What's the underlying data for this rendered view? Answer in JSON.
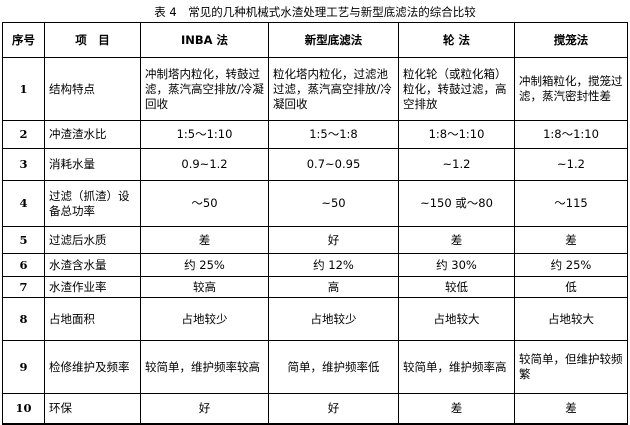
{
  "caption": "表 4　常见的几种机械式水渣处理工艺与新型底滤法的综合比较",
  "headers": [
    "序号",
    "项　目",
    "INBA 法",
    "新型底滤法",
    "轮 法",
    "搅笼法"
  ],
  "rows": [
    {
      "no": "1",
      "item": "结构特点",
      "values": [
        "冲制塔内粒化，转鼓过滤，蒸汽高空排放/冷凝回收",
        "粒化塔内粒化，过滤池过滤，蒸汽高空排放/冷凝回收",
        "粒化轮（或粒化箱）粒化，转鼓过滤，高空排放",
        "冲制箱粒化，搅笼过滤，蒸汽密封性差"
      ]
    },
    {
      "no": "2",
      "item": "冲渣渣水比",
      "values": [
        "1:5～1:10",
        "1:5～1:8",
        "1:8～1:10",
        "1:8～1:10"
      ]
    },
    {
      "no": "3",
      "item": "消耗水量",
      "values": [
        "0.9~1.2",
        "0.7~0.95",
        "~1.2",
        "~1.2"
      ]
    },
    {
      "no": "4",
      "item": "过滤（抓渣）设备总功率",
      "values": [
        "～50",
        "~50",
        "~150 或～80",
        "～115"
      ]
    },
    {
      "no": "5",
      "item": "过滤后水质",
      "values": [
        "差",
        "好",
        "差",
        "差"
      ]
    },
    {
      "no": "6",
      "item": "水渣含水量",
      "values": [
        "约 25%",
        "约 12%",
        "约 30%",
        "约 25%"
      ]
    },
    {
      "no": "7",
      "item": "水渣作业率",
      "values": [
        "较高",
        "高",
        "较低",
        "低"
      ]
    },
    {
      "no": "8",
      "item": "占地面积",
      "values": [
        "占地较少",
        "占地较少",
        "占地较大",
        "占地较大"
      ]
    },
    {
      "no": "9",
      "item": "检修维护及频率",
      "values": [
        "较简单，维护频率较高",
        "简单，维护频率低",
        "较简单，维护频率高",
        "较简单，但维护较频繁"
      ]
    },
    {
      "no": "10",
      "item": "环保",
      "values": [
        "好",
        "好",
        "差",
        "差"
      ]
    }
  ]
}
